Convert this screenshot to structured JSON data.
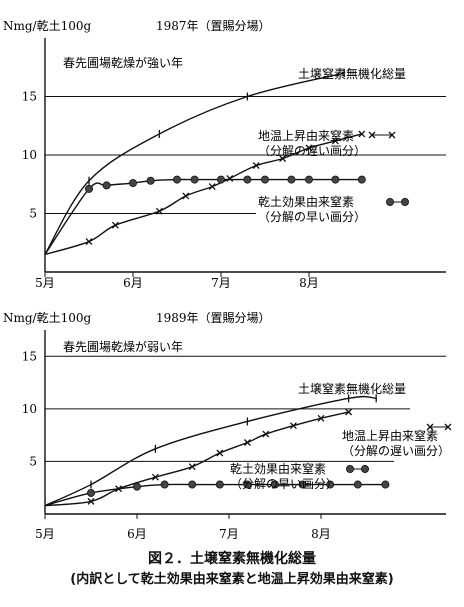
{
  "figure": {
    "caption": "図２．土壌窒素無機化総量",
    "subcaption": "(内訳として乾土効果由来窒素と地温上昇効果由来窒素)"
  },
  "chart_data": [
    {
      "type": "line",
      "ylabel": "Nmg/乾土100g",
      "title": "1987年（置賜分場）",
      "subtitle": "春先圃場乾燥が強い年",
      "xticks": [
        "5月",
        "6月",
        "7月",
        "8月"
      ],
      "yticks": [
        5,
        10,
        15
      ],
      "ylim": [
        0,
        20
      ],
      "grid": "horizontal",
      "series": [
        {
          "name": "土壌窒素無機化総量",
          "marker": "tick",
          "legend": [
            "土壌窒素無機化総量"
          ],
          "x": [
            0.0,
            0.5,
            1.3,
            2.3,
            3.4
          ],
          "y": [
            1.5,
            7.8,
            11.8,
            15.0,
            17.0
          ]
        },
        {
          "name": "地温上昇由来窒素",
          "marker": "x",
          "legend": [
            "地温上昇由来窒素",
            "（分解の遅い画分）"
          ],
          "x": [
            0.0,
            0.5,
            0.8,
            1.3,
            1.6,
            1.9,
            2.1,
            2.4,
            2.7,
            3.0,
            3.3,
            3.6
          ],
          "y": [
            1.5,
            2.6,
            4.0,
            5.2,
            6.5,
            7.3,
            8.0,
            9.1,
            9.7,
            10.6,
            11.2,
            11.8
          ]
        },
        {
          "name": "乾土効果由来窒素",
          "marker": "circle",
          "legend": [
            "乾土効果由来窒素",
            "（分解の早い画分）"
          ],
          "x": [
            0.0,
            0.5,
            0.7,
            1.0,
            1.2,
            1.5,
            1.7,
            2.0,
            2.3,
            2.5,
            2.8,
            3.0,
            3.3,
            3.6
          ],
          "y": [
            1.5,
            7.1,
            7.4,
            7.6,
            7.8,
            7.9,
            7.9,
            7.9,
            7.9,
            7.9,
            7.9,
            7.9,
            7.9,
            7.9
          ]
        }
      ]
    },
    {
      "type": "line",
      "ylabel": "Nmg/乾土100g",
      "title": "1989年（置賜分場）",
      "subtitle": "春先圃場乾燥が弱い年",
      "xticks": [
        "5月",
        "6月",
        "7月",
        "8月"
      ],
      "yticks": [
        5,
        10,
        15
      ],
      "ylim": [
        0,
        17.5
      ],
      "grid": "horizontal",
      "series": [
        {
          "name": "土壌窒素無機化総量",
          "marker": "tick",
          "legend": [
            "土壌窒素無機化総量"
          ],
          "x": [
            0.0,
            0.5,
            1.2,
            2.2,
            3.3,
            3.6
          ],
          "y": [
            0.8,
            2.8,
            6.2,
            8.8,
            11.0,
            11.0
          ]
        },
        {
          "name": "地温上昇由来窒素",
          "marker": "x",
          "legend": [
            "地温上昇由来窒素",
            "（分解の遅い画分）"
          ],
          "x": [
            0.0,
            0.5,
            0.8,
            1.2,
            1.6,
            1.9,
            2.2,
            2.4,
            2.7,
            3.0,
            3.3
          ],
          "y": [
            0.8,
            1.2,
            2.4,
            3.5,
            4.5,
            5.8,
            6.8,
            7.6,
            8.4,
            9.1,
            9.7
          ]
        },
        {
          "name": "乾土効果由来窒素",
          "marker": "circle",
          "legend": [
            "乾土効果由来窒素",
            "（分解の早い画分）"
          ],
          "x": [
            0.0,
            0.5,
            1.0,
            1.3,
            1.6,
            1.9,
            2.2,
            2.5,
            2.8,
            3.1,
            3.4,
            3.7
          ],
          "y": [
            0.8,
            2.0,
            2.6,
            2.8,
            2.8,
            2.8,
            2.8,
            2.8,
            2.8,
            2.8,
            2.8,
            2.8
          ]
        }
      ]
    }
  ]
}
